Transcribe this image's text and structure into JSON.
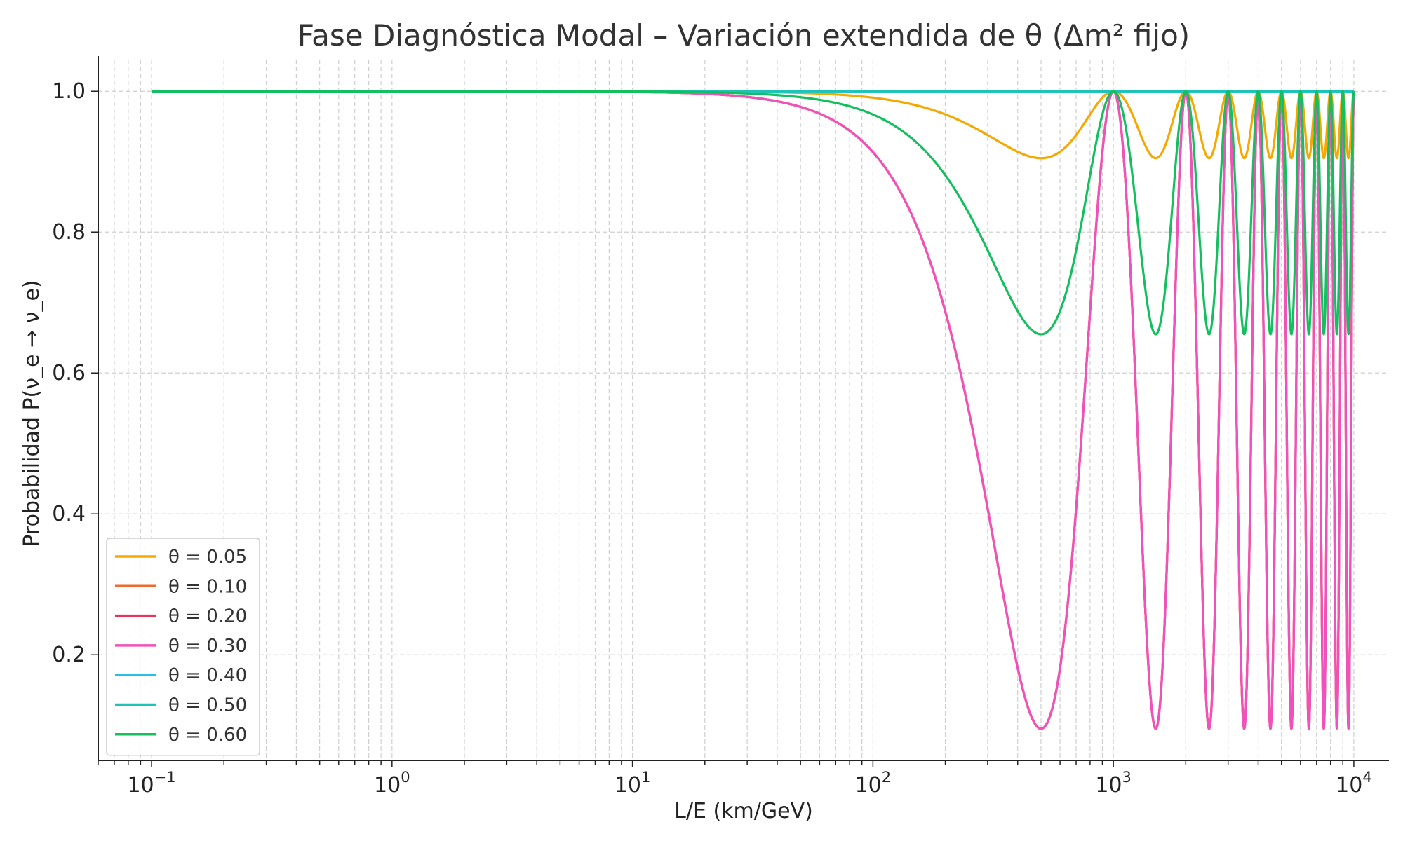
{
  "chart_data": {
    "type": "line",
    "title": "Fase Diagnóstica Modal – Variación extendida de θ (Δm² fijo)",
    "xlabel": "L/E (km/GeV)",
    "ylabel": "Probabilidad P(ν_e → ν_e)",
    "xscale": "log",
    "xlim": [
      0.06,
      14000
    ],
    "ylim": [
      0.05,
      1.045
    ],
    "x_ticks": [
      {
        "value": 0.1,
        "base": "10",
        "exp": "−1"
      },
      {
        "value": 1,
        "base": "10",
        "exp": "0"
      },
      {
        "value": 10,
        "base": "10",
        "exp": "1"
      },
      {
        "value": 100,
        "base": "10",
        "exp": "2"
      },
      {
        "value": 1000,
        "base": "10",
        "exp": "3"
      },
      {
        "value": 10000,
        "base": "10",
        "exp": "4"
      }
    ],
    "y_ticks": [
      {
        "value": 0.2,
        "label": "0.2"
      },
      {
        "value": 0.4,
        "label": "0.4"
      },
      {
        "value": 0.6,
        "label": "0.6"
      },
      {
        "value": 0.8,
        "label": "0.8"
      },
      {
        "value": 1.0,
        "label": "1.0"
      }
    ],
    "grid": true,
    "legend_position": "lower-left",
    "x_range": [
      0.1,
      10000
    ],
    "oscillation_period": 1000,
    "series": [
      {
        "name": "θ = 0.05",
        "color": "#F5A800",
        "min_value": 0.905
      },
      {
        "name": "θ = 0.10",
        "color": "#EE6A2E",
        "min_value": 0.095
      },
      {
        "name": "θ = 0.20",
        "color": "#EA3359",
        "min_value": 0.095
      },
      {
        "name": "θ = 0.30",
        "color": "#F052BB",
        "min_value": 0.095
      },
      {
        "name": "θ = 0.40",
        "color": "#2ABDE8",
        "min_value": 1.0
      },
      {
        "name": "θ = 0.50",
        "color": "#1CC3B8",
        "min_value": 1.0
      },
      {
        "name": "θ = 0.60",
        "color": "#13BF5E",
        "min_value": 0.655
      }
    ]
  }
}
